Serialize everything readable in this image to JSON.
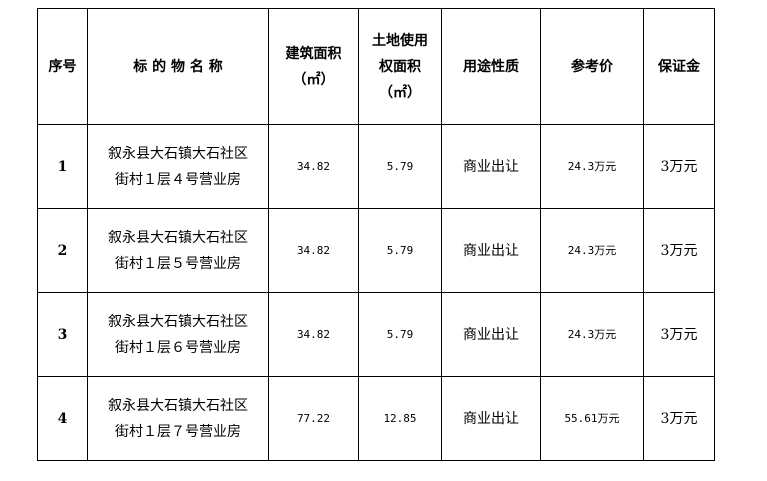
{
  "headers": {
    "index": "序号",
    "name": "标 的 物 名 称",
    "building_area": [
      "建筑面积",
      "（㎡）"
    ],
    "land_area": [
      "土地使用",
      "权面积",
      "（㎡）"
    ],
    "usage": "用途性质",
    "ref_price": "参考价",
    "deposit": "保证金"
  },
  "rows": [
    {
      "index": "1",
      "name": [
        "叙永县大石镇大石社区",
        "街村１层４号营业房"
      ],
      "building_area": "34.82",
      "land_area": "5.79",
      "usage": "商业出让",
      "ref_price": "24.3万元",
      "deposit": "3万元"
    },
    {
      "index": "2",
      "name": [
        "叙永县大石镇大石社区",
        "街村１层５号营业房"
      ],
      "building_area": "34.82",
      "land_area": "5.79",
      "usage": "商业出让",
      "ref_price": "24.3万元",
      "deposit": "3万元"
    },
    {
      "index": "3",
      "name": [
        "叙永县大石镇大石社区",
        "街村１层６号营业房"
      ],
      "building_area": "34.82",
      "land_area": "5.79",
      "usage": "商业出让",
      "ref_price": "24.3万元",
      "deposit": "3万元"
    },
    {
      "index": "4",
      "name": [
        "叙永县大石镇大石社区",
        "街村１层７号营业房"
      ],
      "building_area": "77.22",
      "land_area": "12.85",
      "usage": "商业出让",
      "ref_price": "55.61万元",
      "deposit": "3万元"
    }
  ]
}
